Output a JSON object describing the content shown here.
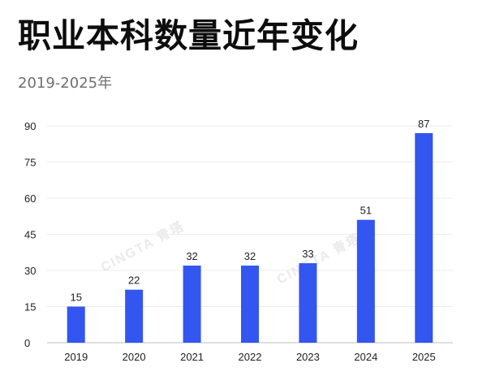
{
  "title": "职业本科数量近年变化",
  "subtitle": "2019-2025年",
  "watermark": "CINGTA 青塔",
  "chart_data": {
    "type": "bar",
    "title": "职业本科数量近年变化",
    "subtitle": "2019-2025年",
    "xlabel": "",
    "ylabel": "",
    "categories": [
      "2019",
      "2020",
      "2021",
      "2022",
      "2023",
      "2024",
      "2025"
    ],
    "values": [
      15,
      22,
      32,
      32,
      33,
      51,
      87
    ],
    "ylim": [
      0,
      90
    ],
    "yticks": [
      0,
      15,
      30,
      45,
      60,
      75,
      90
    ],
    "grid": true,
    "bar_color": "#3355f0"
  }
}
